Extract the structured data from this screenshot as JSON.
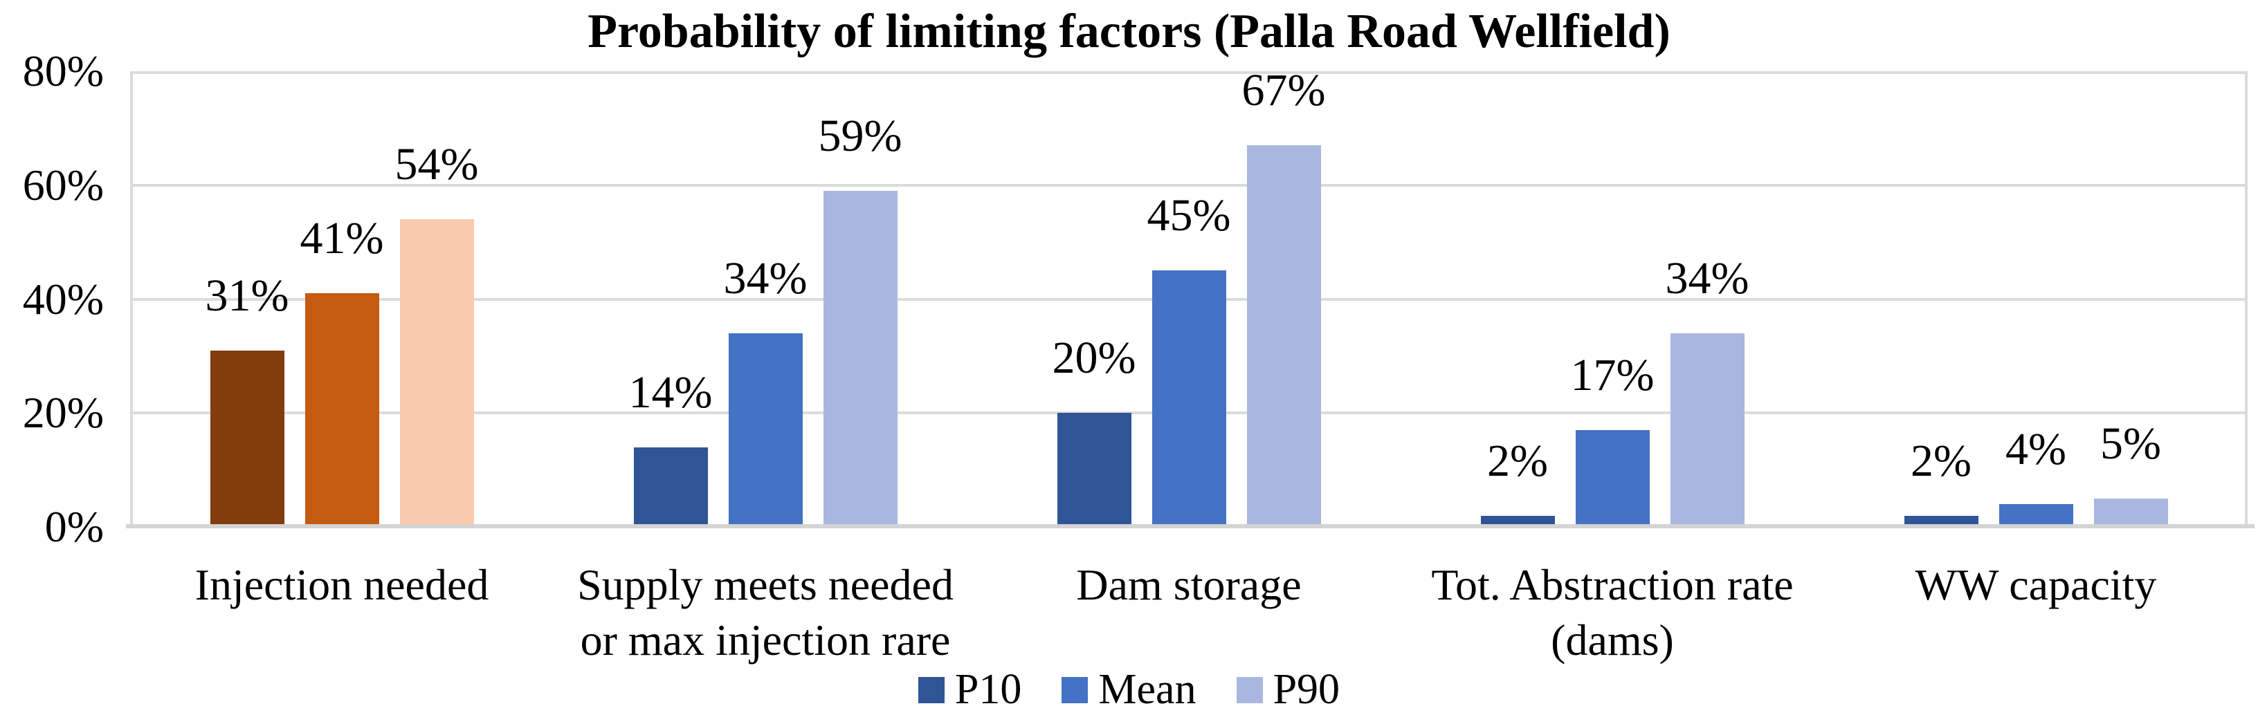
{
  "chart_data": {
    "type": "bar",
    "title": "Probability of limiting factors (Palla Road Wellfield)",
    "categories": [
      "Injection needed",
      "Supply meets needed\nor max injection rare",
      "Dam storage",
      "Tot. Abstraction rate\n(dams)",
      "WW capacity"
    ],
    "series": [
      {
        "name": "P10",
        "color": "#2F5597",
        "values": [
          31,
          14,
          20,
          2,
          2
        ]
      },
      {
        "name": "Mean",
        "color": "#4472C4",
        "values": [
          41,
          34,
          45,
          17,
          4
        ]
      },
      {
        "name": "P90",
        "color": "#A9B7E0",
        "values": [
          54,
          59,
          67,
          34,
          5
        ]
      }
    ],
    "highlight": {
      "category_index": 0,
      "colors": [
        "#833C0C",
        "#C55A11",
        "#F8CBAD"
      ]
    },
    "data_label_suffix": "%",
    "y_axis": {
      "ticks": [
        "0%",
        "20%",
        "40%",
        "60%",
        "80%"
      ],
      "min": 0,
      "max": 80
    },
    "grid": true,
    "gridline_color": "#DBDBDB",
    "axis_line_color": "#D4D4D4",
    "legend_position": "bottom"
  }
}
